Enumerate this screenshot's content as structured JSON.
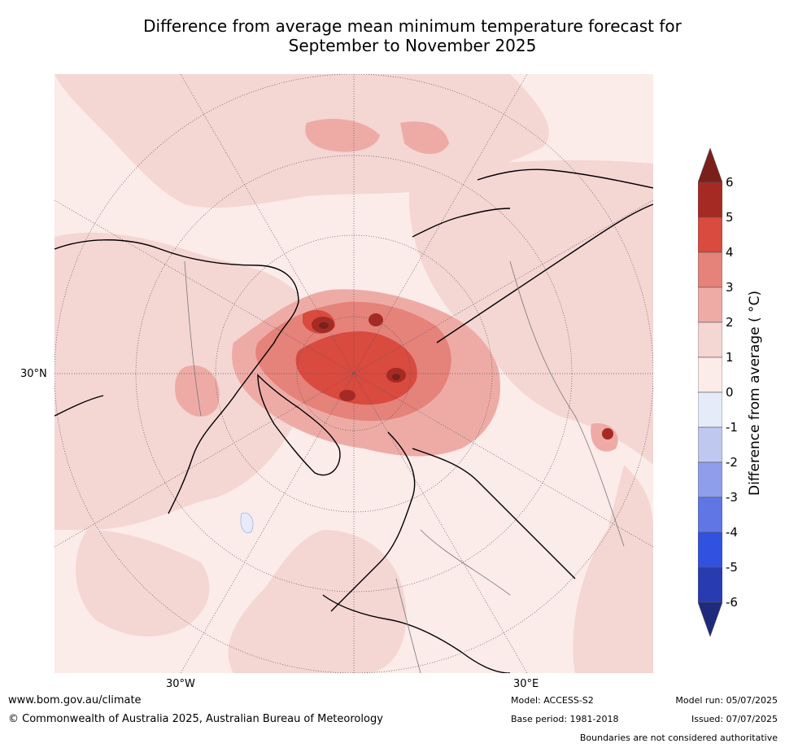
{
  "title_line1": "Difference from average mean minimum temperature forecast for",
  "title_line2": "September to November 2025",
  "map_labels": {
    "lat_30n": "30°N",
    "lon_30w": "30°W",
    "lon_30e": "30°E"
  },
  "colorbar": {
    "label": "Difference from average ( °C)",
    "ticks": [
      "6",
      "5",
      "4",
      "3",
      "2",
      "1",
      "0",
      "-1",
      "-2",
      "-3",
      "-4",
      "-5",
      "-6"
    ],
    "colors": {
      "above_6": "#7a1f1a",
      "5_6": "#a52a23",
      "4_5": "#d94a3f",
      "3_4": "#e5827a",
      "2_3": "#eeaba6",
      "1_2": "#f4d6d3",
      "0_1": "#fbebe9",
      "m1_0": "#e6ebf9",
      "m2_m1": "#bfc8ef",
      "m3_m2": "#8e9eea",
      "m4_m3": "#5f76e4",
      "m5_m4": "#3152e0",
      "m6_m5": "#283cb0",
      "below_m6": "#1e2a7c"
    }
  },
  "footer": {
    "website": "www.bom.gov.au/climate",
    "copyright": "© Commonwealth of Australia 2025, Australian Bureau of Meteorology",
    "model": "Model: ACCESS-S2",
    "base_period": "Base period: 1981-2018",
    "model_run": "Model run: 05/07/2025",
    "issued": "Issued: 07/07/2025",
    "disclaimer": "Boundaries are not considered authoritative"
  }
}
